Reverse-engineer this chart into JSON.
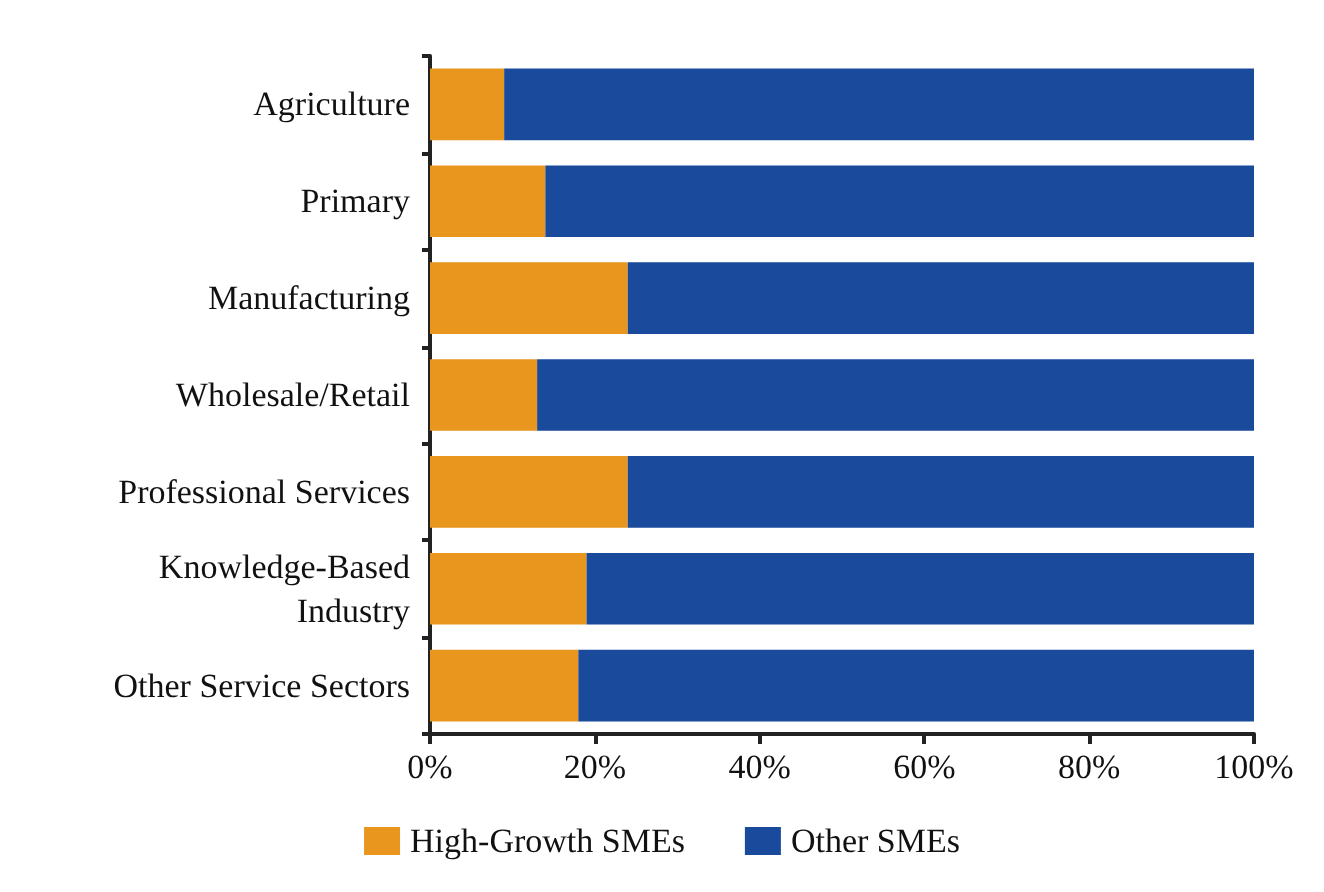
{
  "chart_data": {
    "type": "bar",
    "orientation": "horizontal",
    "stacked": true,
    "categories": [
      "Agriculture",
      "Primary",
      "Manufacturing",
      "Wholesale/Retail",
      "Professional Services",
      "Knowledge-Based\nIndustry",
      "Other Service Sectors"
    ],
    "series": [
      {
        "name": "High-Growth SMEs",
        "color": "#e8961e",
        "values": [
          9,
          14,
          24,
          13,
          24,
          19,
          18
        ]
      },
      {
        "name": "Other SMEs",
        "color": "#1a4a9c",
        "values": [
          91,
          86,
          76,
          87,
          76,
          81,
          82
        ]
      }
    ],
    "xlim": [
      0,
      100
    ],
    "xticks": [
      {
        "value": 0,
        "label": "0%"
      },
      {
        "value": 20,
        "label": "20%"
      },
      {
        "value": 40,
        "label": "40%"
      },
      {
        "value": 60,
        "label": "60%"
      },
      {
        "value": 80,
        "label": "80%"
      },
      {
        "value": 100,
        "label": "100%"
      }
    ],
    "grid": false,
    "legend": "bottom"
  }
}
